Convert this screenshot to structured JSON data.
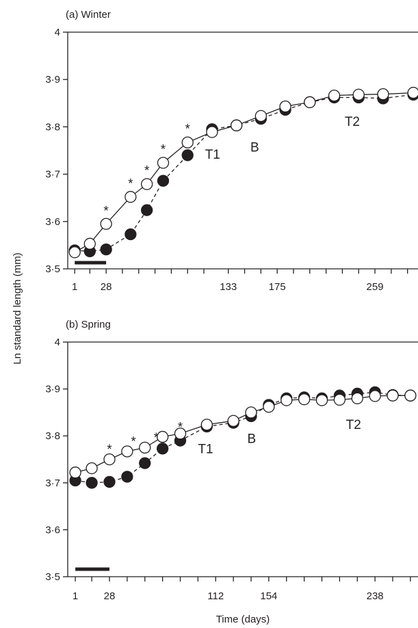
{
  "ylabel": "Ln standard length (mm)",
  "xlabel": "Time (days)",
  "chart_data": [
    {
      "type": "line",
      "title": "(a)  Winter",
      "ylim": [
        3.5,
        4.0
      ],
      "xlim": [
        -5,
        296
      ],
      "yticks": [
        3.5,
        3.6,
        3.7,
        3.8,
        3.9,
        4.0
      ],
      "ytick_labels": [
        "3·5",
        "3·6",
        "3·7",
        "3·8",
        "3·9",
        "4"
      ],
      "xticks": [
        1,
        28,
        133,
        175,
        259
      ],
      "xtick_minor": [
        1,
        14,
        28,
        42,
        56,
        70,
        84,
        98,
        112,
        133,
        147,
        161,
        175,
        189,
        203,
        217,
        231,
        245,
        259,
        273,
        287
      ],
      "bar": {
        "from": 1,
        "to": 28
      },
      "series": [
        {
          "style": "open",
          "line": "solid",
          "x": [
            1,
            14,
            28,
            49,
            63,
            77,
            98,
            119,
            140,
            161,
            182,
            203,
            224,
            245,
            266,
            292
          ],
          "y": [
            3.535,
            3.553,
            3.595,
            3.652,
            3.679,
            3.724,
            3.767,
            3.789,
            3.803,
            3.823,
            3.843,
            3.852,
            3.866,
            3.868,
            3.869,
            3.872
          ]
        },
        {
          "style": "filled",
          "line": "dashed",
          "x": [
            1,
            14,
            28,
            49,
            63,
            77,
            98,
            119,
            140,
            161,
            182,
            203,
            224,
            245,
            266,
            292
          ],
          "y": [
            3.539,
            3.537,
            3.541,
            3.573,
            3.624,
            3.686,
            3.74,
            3.795,
            3.803,
            3.817,
            3.836,
            3.852,
            3.862,
            3.862,
            3.86,
            3.868
          ]
        }
      ],
      "asterisks": [
        {
          "x": 28,
          "y": 3.628,
          "text": "*"
        },
        {
          "x": 49,
          "y": 3.686,
          "text": "*"
        },
        {
          "x": 63,
          "y": 3.713,
          "text": "*"
        },
        {
          "x": 77,
          "y": 3.758,
          "text": "*"
        },
        {
          "x": 98,
          "y": 3.801,
          "text": "*"
        }
      ],
      "labels": [
        {
          "text": "T1",
          "x": 113,
          "y": 3.743
        },
        {
          "text": "B",
          "x": 152,
          "y": 3.758
        },
        {
          "text": "T2",
          "x": 233,
          "y": 3.812
        }
      ]
    },
    {
      "type": "line",
      "title": "(b) Spring",
      "ylim": [
        3.5,
        4.0
      ],
      "xlim": [
        -5,
        272
      ],
      "yticks": [
        3.5,
        3.6,
        3.7,
        3.8,
        3.9,
        4.0
      ],
      "ytick_labels": [
        "3·5",
        "3·6",
        "3·7",
        "3·8",
        "3·9",
        "4"
      ],
      "xticks": [
        1,
        28,
        112,
        154,
        238
      ],
      "xtick_minor": [
        1,
        14,
        28,
        42,
        56,
        70,
        84,
        98,
        112,
        126,
        140,
        154,
        168,
        182,
        196,
        210,
        224,
        238,
        252,
        266
      ],
      "bar": {
        "from": 1,
        "to": 28
      },
      "series": [
        {
          "style": "open",
          "line": "solid",
          "x": [
            1,
            14,
            28,
            42,
            56,
            70,
            84,
            105,
            126,
            140,
            154,
            168,
            182,
            196,
            210,
            224,
            238,
            252,
            266
          ],
          "y": [
            3.722,
            3.731,
            3.75,
            3.767,
            3.775,
            3.798,
            3.805,
            3.824,
            3.832,
            3.85,
            3.862,
            3.876,
            3.878,
            3.876,
            3.877,
            3.88,
            3.885,
            3.886,
            3.886
          ]
        },
        {
          "style": "filled",
          "line": "dashed",
          "x": [
            1,
            14,
            28,
            42,
            56,
            70,
            84,
            105,
            126,
            140,
            154,
            168,
            182,
            196,
            210,
            224,
            238,
            252,
            266
          ],
          "y": [
            3.705,
            3.7,
            3.702,
            3.713,
            3.742,
            3.773,
            3.79,
            3.82,
            3.828,
            3.842,
            3.866,
            3.88,
            3.882,
            3.88,
            3.886,
            3.89,
            3.893,
            3.887,
            3.886
          ]
        }
      ],
      "asterisks": [
        {
          "x": 28,
          "y": 3.777,
          "text": "*"
        },
        {
          "x": 47,
          "y": 3.794,
          "text": "*"
        },
        {
          "x": 65,
          "y": 3.802,
          "text": "*"
        },
        {
          "x": 84,
          "y": 3.824,
          "text": "*"
        }
      ],
      "labels": [
        {
          "text": "T1",
          "x": 98,
          "y": 3.773
        },
        {
          "text": "B",
          "x": 137,
          "y": 3.795
        },
        {
          "text": "T2",
          "x": 215,
          "y": 3.825
        }
      ]
    }
  ]
}
